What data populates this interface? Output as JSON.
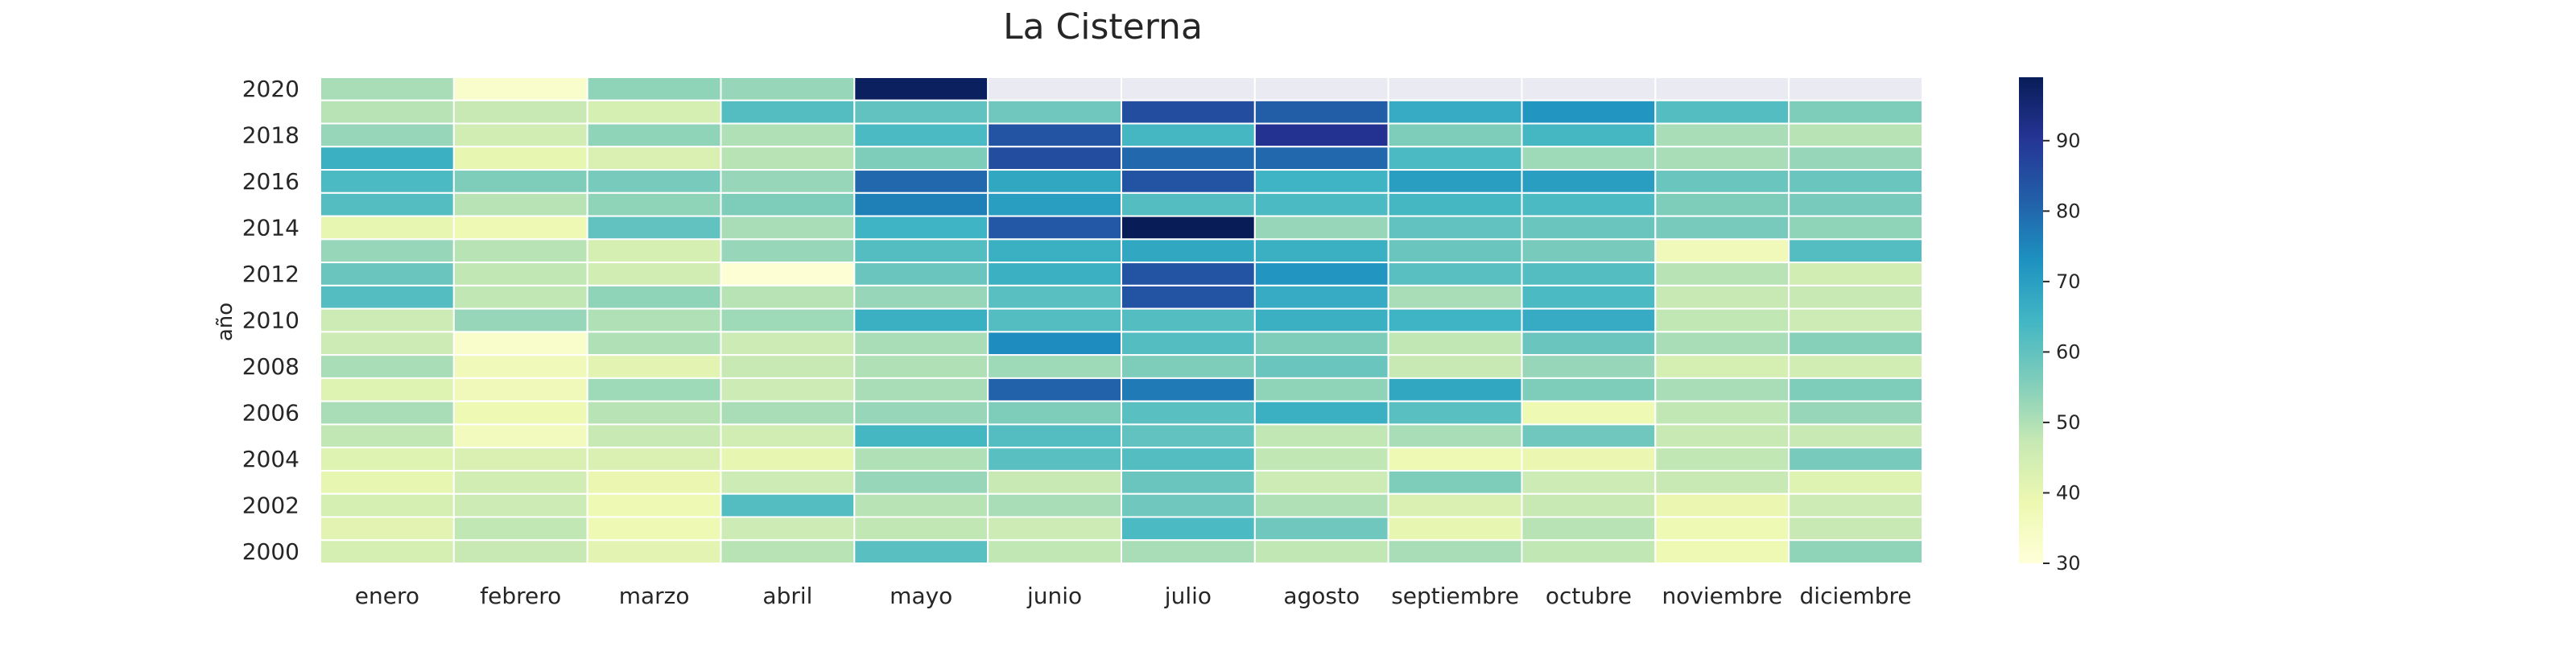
{
  "chart_data": {
    "type": "heatmap",
    "title": "La Cisterna",
    "xlabel": "",
    "ylabel": "año",
    "colormap": "YlGnBu",
    "missing_color": "#eaeaf2",
    "vmin": 30,
    "vmax": 99,
    "colorbar_ticks": [
      "30",
      "40",
      "50",
      "60",
      "70",
      "80",
      "90"
    ],
    "colorbar_tick_values": [
      30,
      40,
      50,
      60,
      70,
      80,
      90
    ],
    "x": [
      "enero",
      "febrero",
      "marzo",
      "abril",
      "mayo",
      "junio",
      "julio",
      "agosto",
      "septiembre",
      "octubre",
      "noviembre",
      "diciembre"
    ],
    "y": [
      2020,
      2019,
      2018,
      2017,
      2016,
      2015,
      2014,
      2013,
      2012,
      2011,
      2010,
      2009,
      2008,
      2007,
      2006,
      2005,
      2004,
      2003,
      2002,
      2001,
      2000
    ],
    "y_tick_labels": [
      "2020",
      "2018",
      "2016",
      "2014",
      "2012",
      "2010",
      "2008",
      "2006",
      "2004",
      "2002",
      "2000"
    ],
    "values": [
      [
        51,
        33,
        54,
        53,
        98,
        null,
        null,
        null,
        null,
        null,
        null,
        null
      ],
      [
        49,
        47,
        44,
        62,
        60,
        58,
        85,
        82,
        67,
        72,
        62,
        56
      ],
      [
        53,
        45,
        54,
        50,
        63,
        84,
        64,
        91,
        56,
        64,
        51,
        49
      ],
      [
        66,
        40,
        43,
        49,
        56,
        85,
        80,
        80,
        63,
        52,
        51,
        53
      ],
      [
        63,
        56,
        57,
        53,
        80,
        68,
        84,
        65,
        70,
        70,
        59,
        59
      ],
      [
        62,
        49,
        54,
        56,
        76,
        70,
        62,
        63,
        64,
        63,
        56,
        57
      ],
      [
        40,
        38,
        60,
        51,
        65,
        83,
        99,
        53,
        60,
        59,
        57,
        54
      ],
      [
        53,
        49,
        44,
        53,
        62,
        66,
        68,
        66,
        59,
        57,
        37,
        62
      ],
      [
        59,
        48,
        45,
        31,
        59,
        66,
        84,
        72,
        61,
        62,
        49,
        45
      ],
      [
        62,
        48,
        54,
        49,
        53,
        61,
        84,
        67,
        51,
        63,
        47,
        47
      ],
      [
        46,
        53,
        50,
        52,
        66,
        62,
        62,
        66,
        65,
        67,
        48,
        46
      ],
      [
        46,
        33,
        50,
        46,
        51,
        74,
        62,
        56,
        48,
        59,
        51,
        55
      ],
      [
        51,
        37,
        41,
        47,
        50,
        52,
        56,
        59,
        47,
        53,
        44,
        45
      ],
      [
        42,
        37,
        52,
        46,
        51,
        81,
        77,
        54,
        68,
        56,
        51,
        56
      ],
      [
        51,
        38,
        49,
        51,
        53,
        56,
        61,
        66,
        61,
        38,
        48,
        53
      ],
      [
        48,
        36,
        47,
        45,
        64,
        62,
        60,
        48,
        51,
        58,
        47,
        47
      ],
      [
        42,
        43,
        43,
        40,
        50,
        61,
        62,
        48,
        38,
        39,
        48,
        57
      ],
      [
        40,
        45,
        39,
        46,
        53,
        47,
        59,
        46,
        56,
        46,
        47,
        42
      ],
      [
        44,
        46,
        38,
        62,
        49,
        51,
        58,
        50,
        43,
        47,
        39,
        46
      ],
      [
        41,
        48,
        38,
        46,
        48,
        46,
        63,
        58,
        40,
        49,
        38,
        47
      ],
      [
        44,
        47,
        41,
        49,
        61,
        48,
        51,
        48,
        51,
        48,
        38,
        54
      ]
    ]
  }
}
